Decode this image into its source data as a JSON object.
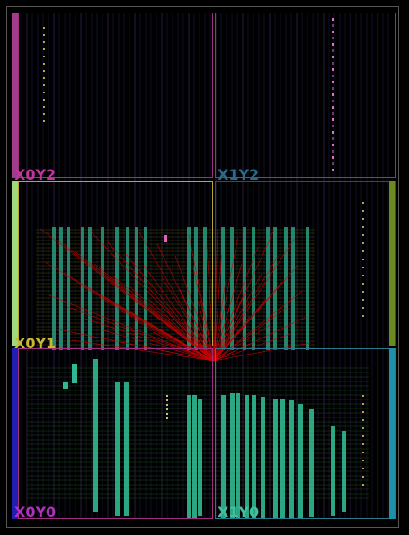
{
  "clock_regions": [
    {
      "label": "X0Y2"
    },
    {
      "label": "X1Y2"
    },
    {
      "label": "X0Y1"
    },
    {
      "label": "X0Y0"
    },
    {
      "label": "X1Y0"
    }
  ]
}
